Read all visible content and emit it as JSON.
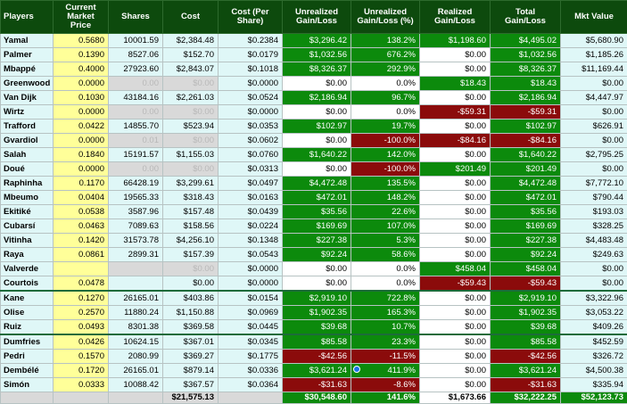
{
  "headers": {
    "players": "Players",
    "price": "Current Market Price",
    "shares": "Shares",
    "cost": "Cost",
    "cost_per_share": "Cost (Per Share)",
    "unrealized": "Unrealized Gain/Loss",
    "unrealized_pct": "Unrealized Gain/Loss (%)",
    "realized": "Realized Gain/Loss",
    "total": "Total Gain/Loss",
    "mkt_value": "Mkt Value"
  },
  "rows": [
    {
      "name": "Yamal",
      "price": "0.5680",
      "shares": "10001.59",
      "cost": "$2,384.48",
      "cps": "$0.2384",
      "unreal": "$3,296.42",
      "pct": "138.2%",
      "real": "$1,198.60",
      "total": "$4,495.02",
      "mkt": "$5,680.90"
    },
    {
      "name": "Palmer",
      "price": "0.1390",
      "shares": "8527.06",
      "cost": "$152.70",
      "cps": "$0.0179",
      "unreal": "$1,032.56",
      "pct": "676.2%",
      "real": "$0.00",
      "total": "$1,032.56",
      "mkt": "$1,185.26"
    },
    {
      "name": "Mbappé",
      "price": "0.4000",
      "shares": "27923.60",
      "cost": "$2,843.07",
      "cps": "$0.1018",
      "unreal": "$8,326.37",
      "pct": "292.9%",
      "real": "$0.00",
      "total": "$8,326.37",
      "mkt": "$11,169.44"
    },
    {
      "name": "Greenwood",
      "price": "0.0000",
      "shares": "0.00",
      "cost": "$0.00",
      "cps": "$0.0000",
      "unreal": "$0.00",
      "pct": "0.0%",
      "real": "$18.43",
      "total": "$18.43",
      "mkt": "$0.00"
    },
    {
      "name": "Van Dijk",
      "price": "0.1030",
      "shares": "43184.16",
      "cost": "$2,261.03",
      "cps": "$0.0524",
      "unreal": "$2,186.94",
      "pct": "96.7%",
      "real": "$0.00",
      "total": "$2,186.94",
      "mkt": "$4,447.97"
    },
    {
      "name": "Wirtz",
      "price": "0.0000",
      "shares": "0.00",
      "cost": "$0.00",
      "cps": "$0.0000",
      "unreal": "$0.00",
      "pct": "0.0%",
      "real": "-$59.31",
      "total": "-$59.31",
      "mkt": "$0.00"
    },
    {
      "name": "Trafford",
      "price": "0.0422",
      "shares": "14855.70",
      "cost": "$523.94",
      "cps": "$0.0353",
      "unreal": "$102.97",
      "pct": "19.7%",
      "real": "$0.00",
      "total": "$102.97",
      "mkt": "$626.91"
    },
    {
      "name": "Gvardiol",
      "price": "0.0000",
      "shares": "0.01",
      "cost": "$0.00",
      "cps": "$0.0602",
      "unreal": "$0.00",
      "pct": "-100.0%",
      "real": "-$84.16",
      "total": "-$84.16",
      "mkt": "$0.00"
    },
    {
      "name": "Salah",
      "price": "0.1840",
      "shares": "15191.57",
      "cost": "$1,155.03",
      "cps": "$0.0760",
      "unreal": "$1,640.22",
      "pct": "142.0%",
      "real": "$0.00",
      "total": "$1,640.22",
      "mkt": "$2,795.25"
    },
    {
      "name": "Doué",
      "price": "0.0000",
      "shares": "0.00",
      "cost": "$0.00",
      "cps": "$0.0313",
      "unreal": "$0.00",
      "pct": "-100.0%",
      "real": "$201.49",
      "total": "$201.49",
      "mkt": "$0.00"
    },
    {
      "name": "Raphinha",
      "price": "0.1170",
      "shares": "66428.19",
      "cost": "$3,299.61",
      "cps": "$0.0497",
      "unreal": "$4,472.48",
      "pct": "135.5%",
      "real": "$0.00",
      "total": "$4,472.48",
      "mkt": "$7,772.10"
    },
    {
      "name": "Mbeumo",
      "price": "0.0404",
      "shares": "19565.33",
      "cost": "$318.43",
      "cps": "$0.0163",
      "unreal": "$472.01",
      "pct": "148.2%",
      "real": "$0.00",
      "total": "$472.01",
      "mkt": "$790.44"
    },
    {
      "name": "Ekitiké",
      "price": "0.0538",
      "shares": "3587.96",
      "cost": "$157.48",
      "cps": "$0.0439",
      "unreal": "$35.56",
      "pct": "22.6%",
      "real": "$0.00",
      "total": "$35.56",
      "mkt": "$193.03"
    },
    {
      "name": "Cubarsí",
      "price": "0.0463",
      "shares": "7089.63",
      "cost": "$158.56",
      "cps": "$0.0224",
      "unreal": "$169.69",
      "pct": "107.0%",
      "real": "$0.00",
      "total": "$169.69",
      "mkt": "$328.25"
    },
    {
      "name": "Vitinha",
      "price": "0.1420",
      "shares": "31573.78",
      "cost": "$4,256.10",
      "cps": "$0.1348",
      "unreal": "$227.38",
      "pct": "5.3%",
      "real": "$0.00",
      "total": "$227.38",
      "mkt": "$4,483.48"
    },
    {
      "name": "Raya",
      "price": "0.0861",
      "shares": "2899.31",
      "cost": "$157.39",
      "cps": "$0.0543",
      "unreal": "$92.24",
      "pct": "58.6%",
      "real": "$0.00",
      "total": "$92.24",
      "mkt": "$249.63"
    },
    {
      "name": "Valverde",
      "price": "",
      "shares": "",
      "cost": "$0.00",
      "cps": "$0.0000",
      "unreal": "$0.00",
      "pct": "0.0%",
      "real": "$458.04",
      "total": "$458.04",
      "mkt": "$0.00"
    },
    {
      "name": "Courtois",
      "price": "0.0478",
      "shares": "",
      "cost": "$0.00",
      "cps": "$0.0000",
      "unreal": "$0.00",
      "pct": "0.0%",
      "real": "-$59.43",
      "total": "-$59.43",
      "mkt": "$0.00"
    },
    {
      "name": "Kane",
      "price": "0.1270",
      "shares": "26165.01",
      "cost": "$403.86",
      "cps": "$0.0154",
      "unreal": "$2,919.10",
      "pct": "722.8%",
      "real": "$0.00",
      "total": "$2,919.10",
      "mkt": "$3,322.96"
    },
    {
      "name": "Olise",
      "price": "0.2570",
      "shares": "11880.24",
      "cost": "$1,150.88",
      "cps": "$0.0969",
      "unreal": "$1,902.35",
      "pct": "165.3%",
      "real": "$0.00",
      "total": "$1,902.35",
      "mkt": "$3,053.22"
    },
    {
      "name": "Ruiz",
      "price": "0.0493",
      "shares": "8301.38",
      "cost": "$369.58",
      "cps": "$0.0445",
      "unreal": "$39.68",
      "pct": "10.7%",
      "real": "$0.00",
      "total": "$39.68",
      "mkt": "$409.26"
    },
    {
      "name": "Dumfries",
      "price": "0.0426",
      "shares": "10624.15",
      "cost": "$367.01",
      "cps": "$0.0345",
      "unreal": "$85.58",
      "pct": "23.3%",
      "real": "$0.00",
      "total": "$85.58",
      "mkt": "$452.59"
    },
    {
      "name": "Pedri",
      "price": "0.1570",
      "shares": "2080.99",
      "cost": "$369.27",
      "cps": "$0.1775",
      "unreal": "-$42.56",
      "pct": "-11.5%",
      "real": "$0.00",
      "total": "-$42.56",
      "mkt": "$326.72"
    },
    {
      "name": "Dembélé",
      "price": "0.1720",
      "shares": "26165.01",
      "cost": "$879.14",
      "cps": "$0.0336",
      "unreal": "$3,621.24",
      "pct": "411.9%",
      "real": "$0.00",
      "total": "$3,621.24",
      "mkt": "$4,500.38"
    },
    {
      "name": "Simón",
      "price": "0.0333",
      "shares": "10088.42",
      "cost": "$367.57",
      "cps": "$0.0364",
      "unreal": "-$31.63",
      "pct": "-8.6%",
      "real": "$0.00",
      "total": "-$31.63",
      "mkt": "$335.94"
    }
  ],
  "totals": {
    "cost": "$21,575.13",
    "unreal": "$30,548.60",
    "pct": "141.6%",
    "real": "$1,673.66",
    "total": "$32,222.25",
    "mkt": "$52,123.73"
  },
  "colors": {
    "header_bg": "#0d4a0d",
    "positive": "#0c8a0c",
    "negative": "#8b0b0b",
    "price_fill": "#ffff99",
    "row_fill": "#dff7f7"
  }
}
